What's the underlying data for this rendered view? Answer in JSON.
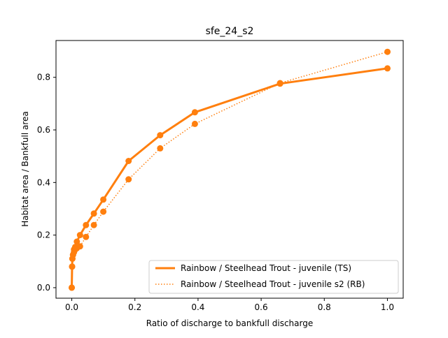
{
  "chart_data": {
    "type": "line",
    "title": "sfe_24_s2",
    "xlabel": "Ratio of discharge to bankfull discharge",
    "ylabel": "Habitat area / Bankfull area",
    "xlim": [
      -0.05,
      1.05
    ],
    "ylim": [
      -0.04,
      0.94
    ],
    "xticks": [
      0.0,
      0.2,
      0.4,
      0.6,
      0.8,
      1.0
    ],
    "xtick_labels": [
      "0.0",
      "0.2",
      "0.4",
      "0.6",
      "0.8",
      "1.0"
    ],
    "yticks": [
      0.0,
      0.2,
      0.4,
      0.6,
      0.8
    ],
    "ytick_labels": [
      "0.0",
      "0.2",
      "0.4",
      "0.6",
      "0.8"
    ],
    "grid": false,
    "legend_position": "lower-right",
    "series": [
      {
        "name": "Rainbow / Steelhead Trout - juvenile (TS)",
        "color": "#ff7f0e",
        "style": "solid",
        "x": [
          0.0,
          0.001,
          0.002,
          0.004,
          0.007,
          0.011,
          0.016,
          0.026,
          0.045,
          0.07,
          0.1,
          0.18,
          0.28,
          0.39,
          0.66,
          1.0
        ],
        "y": [
          0.0,
          0.08,
          0.11,
          0.125,
          0.145,
          0.155,
          0.175,
          0.2,
          0.238,
          0.282,
          0.335,
          0.482,
          0.58,
          0.667,
          0.776,
          0.834
        ]
      },
      {
        "name": "Rainbow / Steelhead Trout - juvenile s2 (RB)",
        "color": "#ff7f0e",
        "style": "dotted",
        "x": [
          0.0,
          0.001,
          0.002,
          0.004,
          0.007,
          0.011,
          0.016,
          0.026,
          0.045,
          0.07,
          0.1,
          0.18,
          0.28,
          0.39,
          0.66,
          1.0
        ],
        "y": [
          0.0,
          0.08,
          0.11,
          0.125,
          0.135,
          0.145,
          0.15,
          0.157,
          0.193,
          0.238,
          0.289,
          0.412,
          0.53,
          0.623,
          0.778,
          0.897
        ]
      }
    ]
  }
}
